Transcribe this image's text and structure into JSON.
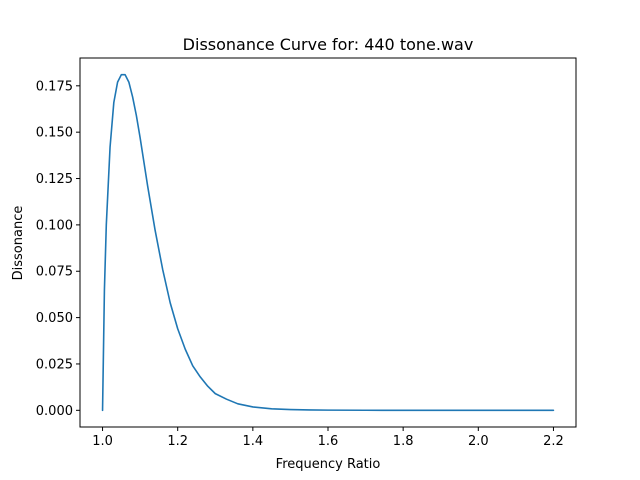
{
  "chart_data": {
    "type": "line",
    "title": "Dissonance Curve for: 440 tone.wav",
    "xlabel": "Frequency Ratio",
    "ylabel": "Dissonance",
    "xlim": [
      0.94,
      2.26
    ],
    "ylim": [
      -0.009,
      0.19
    ],
    "xticks": [
      1.0,
      1.2,
      1.4,
      1.6,
      1.8,
      2.0,
      2.2
    ],
    "xtick_labels": [
      "1.0",
      "1.2",
      "1.4",
      "1.6",
      "1.8",
      "2.0",
      "2.2"
    ],
    "yticks": [
      0.0,
      0.025,
      0.05,
      0.075,
      0.1,
      0.125,
      0.15,
      0.175
    ],
    "ytick_labels": [
      "0.000",
      "0.025",
      "0.050",
      "0.075",
      "0.100",
      "0.125",
      "0.150",
      "0.175"
    ],
    "grid": false,
    "series": [
      {
        "color": "#1f77b4",
        "x": [
          1.0,
          1.005,
          1.01,
          1.02,
          1.03,
          1.04,
          1.05,
          1.06,
          1.07,
          1.08,
          1.09,
          1.1,
          1.12,
          1.14,
          1.16,
          1.18,
          1.2,
          1.22,
          1.24,
          1.26,
          1.28,
          1.3,
          1.33,
          1.36,
          1.4,
          1.45,
          1.5,
          1.55,
          1.6,
          1.7,
          1.8,
          1.9,
          2.0,
          2.1,
          2.2
        ],
        "y": [
          0.0,
          0.065,
          0.1,
          0.142,
          0.166,
          0.177,
          0.181,
          0.181,
          0.177,
          0.169,
          0.159,
          0.147,
          0.121,
          0.097,
          0.076,
          0.058,
          0.044,
          0.033,
          0.024,
          0.018,
          0.013,
          0.009,
          0.006,
          0.0035,
          0.0018,
          0.0008,
          0.0004,
          0.0002,
          0.0001,
          3e-05,
          1e-05,
          0.0,
          0.0,
          0.0,
          0.0
        ]
      }
    ]
  }
}
